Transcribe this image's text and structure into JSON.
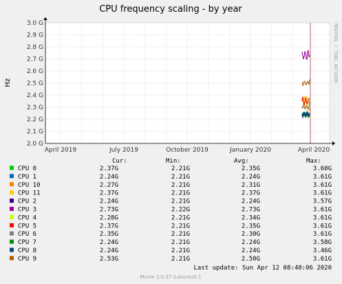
{
  "chart_data": {
    "type": "line",
    "title": "CPU frequency scaling - by year",
    "ylabel": "Hz",
    "y_ticks": [
      "2.0 G",
      "2.1 G",
      "2.2 G",
      "2.3 G",
      "2.4 G",
      "2.5 G",
      "2.6 G",
      "2.7 G",
      "2.8 G",
      "2.9 G",
      "3.0 G"
    ],
    "ylim": [
      2.0,
      3.0
    ],
    "x_ticks": [
      "April 2019",
      "July 2019",
      "October 2019",
      "January 2020",
      "April 2020"
    ],
    "grid": true,
    "legend_header": {
      "cur": "Cur:",
      "min": "Min:",
      "avg": "Avg:",
      "max": "Max:"
    },
    "series": [
      {
        "name": "CPU 0",
        "color": "#00cc00",
        "cur": "2.37G",
        "min": "2.21G",
        "avg": "2.35G",
        "max": "3.60G"
      },
      {
        "name": "CPU 1",
        "color": "#0066b3",
        "cur": "2.24G",
        "min": "2.21G",
        "avg": "2.24G",
        "max": "3.61G"
      },
      {
        "name": "CPU 10",
        "color": "#ff8000",
        "cur": "2.27G",
        "min": "2.21G",
        "avg": "2.31G",
        "max": "3.61G"
      },
      {
        "name": "CPU 11",
        "color": "#ffcc00",
        "cur": "2.37G",
        "min": "2.21G",
        "avg": "2.37G",
        "max": "3.61G"
      },
      {
        "name": "CPU 2",
        "color": "#330099",
        "cur": "2.24G",
        "min": "2.21G",
        "avg": "2.24G",
        "max": "3.57G"
      },
      {
        "name": "CPU 3",
        "color": "#990099",
        "cur": "2.73G",
        "min": "2.22G",
        "avg": "2.73G",
        "max": "3.61G"
      },
      {
        "name": "CPU 4",
        "color": "#ccff00",
        "cur": "2.28G",
        "min": "2.21G",
        "avg": "2.34G",
        "max": "3.61G"
      },
      {
        "name": "CPU 5",
        "color": "#ff0000",
        "cur": "2.37G",
        "min": "2.21G",
        "avg": "2.35G",
        "max": "3.61G"
      },
      {
        "name": "CPU 6",
        "color": "#808080",
        "cur": "2.35G",
        "min": "2.21G",
        "avg": "2.30G",
        "max": "3.61G"
      },
      {
        "name": "CPU 7",
        "color": "#008f00",
        "cur": "2.24G",
        "min": "2.21G",
        "avg": "2.24G",
        "max": "3.58G"
      },
      {
        "name": "CPU 8",
        "color": "#00487d",
        "cur": "2.24G",
        "min": "2.21G",
        "avg": "2.24G",
        "max": "3.46G"
      },
      {
        "name": "CPU 9",
        "color": "#b35a00",
        "cur": "2.53G",
        "min": "2.21G",
        "avg": "2.50G",
        "max": "3.61G"
      }
    ],
    "side_label": "RRDTOOL / TOBI OETIKER",
    "last_update": "Last update:  Sun Apr 12 08:40:06 2020",
    "footer": "Munin 2.0.37-1ubuntu0.1",
    "colors": {
      "background": "#f0f0f0",
      "plot_bg": "#ffffff",
      "grid": "#e0a0a0",
      "now_line": "#7f4040"
    }
  }
}
